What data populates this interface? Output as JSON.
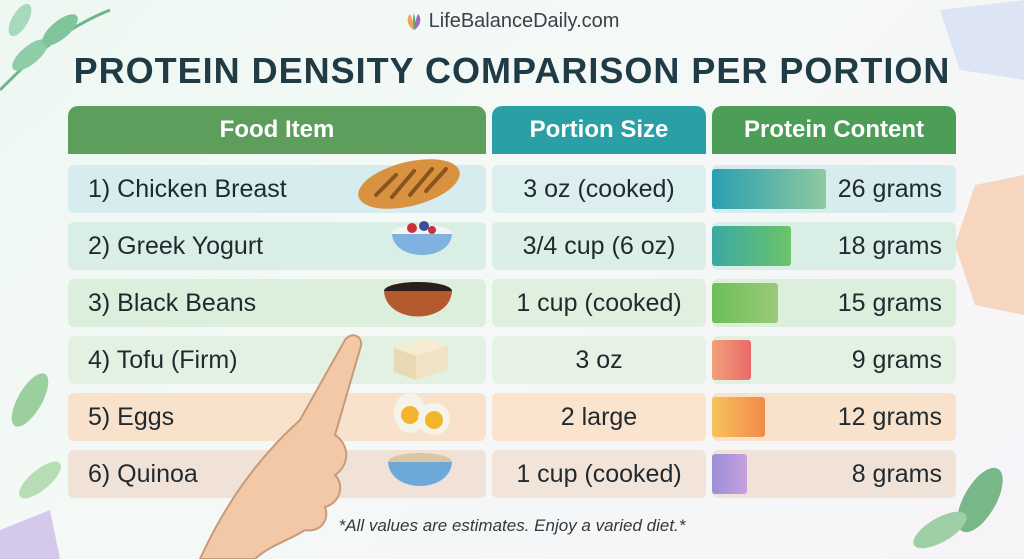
{
  "brand": "LifeBalanceDaily.com",
  "title": "PROTEIN DENSITY COMPARISON PER PORTION",
  "columns": [
    "Food Item",
    "Portion Size",
    "Protein Content"
  ],
  "colors": {
    "header_food": "#5d9e5c",
    "header_portion": "#2a9fa6",
    "header_protein": "#4c9e57"
  },
  "chart_data": {
    "type": "bar",
    "title": "PROTEIN DENSITY COMPARISON PER PORTION",
    "categories": [
      "1) Chicken Breast",
      "2) Greek Yogurt",
      "3) Black Beans",
      "4) Tofu (Firm)",
      "5) Eggs",
      "6) Quinoa"
    ],
    "portions": [
      "3 oz (cooked)",
      "3/4 cup (6 oz)",
      "1 cup (cooked)",
      "3 oz",
      "2 large",
      "1 cup (cooked)"
    ],
    "values": [
      26,
      18,
      15,
      9,
      12,
      8
    ],
    "value_labels": [
      "26 grams",
      "18 grams",
      "15 grams",
      "9 grams",
      "12 grams",
      "8 grams"
    ],
    "unit": "grams",
    "icons": [
      "chicken-breast-icon",
      "greek-yogurt-icon",
      "black-beans-icon",
      "tofu-icon",
      "eggs-icon",
      "quinoa-icon"
    ],
    "bar_colors": [
      [
        "#2a9fb0",
        "#8fc9a0"
      ],
      [
        "#3aa9a4",
        "#6cc36a"
      ],
      [
        "#6abf55",
        "#9cc97a"
      ],
      [
        "#f2a07a",
        "#e86a6a"
      ],
      [
        "#f7c35a",
        "#f18a4a"
      ],
      [
        "#9a8fd8",
        "#c8a0e0"
      ]
    ],
    "row_colors": [
      "#d7ecef",
      "#d9efe6",
      "#dcefdc",
      "#e2f1e1",
      "#f8e2cb",
      "#f1e2d8"
    ],
    "portion_colors": [
      "#dcefef",
      "#dcefe6",
      "#e0f0df",
      "#e6f2e3",
      "#fae4cd",
      "#f3e4da"
    ],
    "xlim": [
      0,
      26
    ]
  },
  "footnote": "*All values are estimates. Enjoy a varied diet.*"
}
